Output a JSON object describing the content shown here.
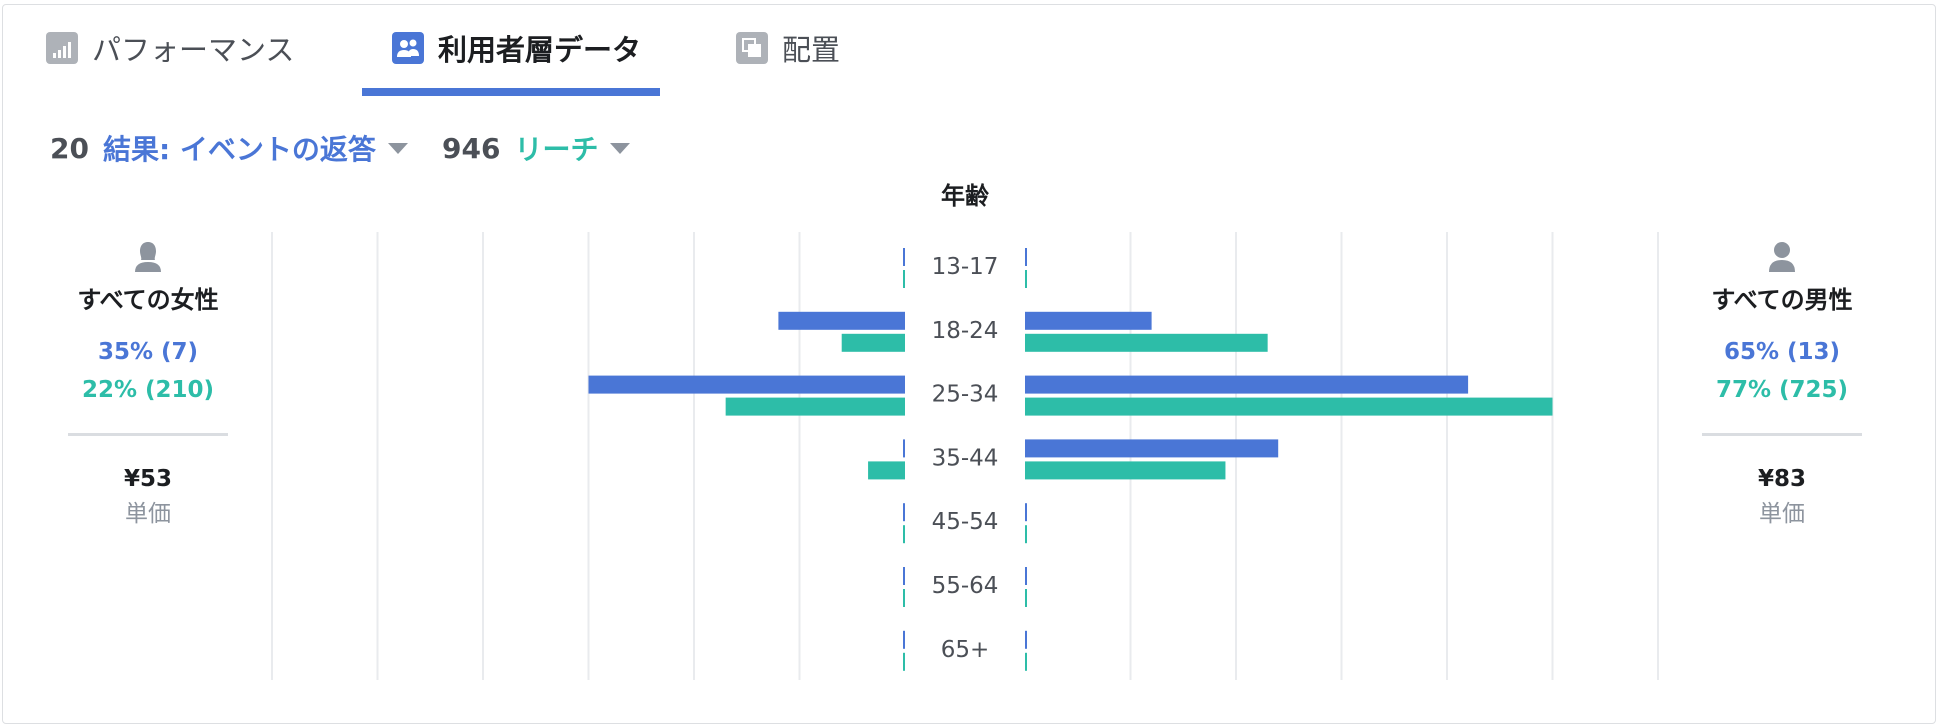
{
  "tabs": [
    {
      "label": "パフォーマンス",
      "icon": "bar-chart-icon",
      "active": false
    },
    {
      "label": "利用者層データ",
      "icon": "people-icon",
      "active": true
    },
    {
      "label": "配置",
      "icon": "placement-icon",
      "active": false
    }
  ],
  "metrics": {
    "results": {
      "count": "20",
      "label": "結果: イベントの返答"
    },
    "reach": {
      "count": "946",
      "label": "リーチ"
    }
  },
  "colors": {
    "results": "#4a76d6",
    "reach": "#2dbda8",
    "text": "#4b4f56",
    "grid": "#e9ebee"
  },
  "female": {
    "title": "すべての女性",
    "results_text": "35% (7)",
    "reach_text": "22% (210)",
    "cost": "¥53",
    "cost_label": "単価"
  },
  "male": {
    "title": "すべての男性",
    "results_text": "65% (13)",
    "reach_text": "77% (725)",
    "cost": "¥83",
    "cost_label": "単価"
  },
  "chart_data": {
    "type": "bar",
    "orientation": "horizontal-butterfly",
    "title": "年齢",
    "categories": [
      "13-17",
      "18-24",
      "25-34",
      "35-44",
      "45-54",
      "55-64",
      "65+"
    ],
    "series": [
      {
        "name": "結果: イベントの返答 (女性)",
        "side": "left",
        "color": "#4a76d6",
        "values": [
          0,
          1.2,
          3.0,
          0,
          0,
          0,
          0
        ]
      },
      {
        "name": "リーチ (女性)",
        "side": "left",
        "color": "#2dbda8",
        "values": [
          0,
          0.6,
          1.7,
          0.35,
          0,
          0,
          0
        ]
      },
      {
        "name": "結果: イベントの返答 (男性)",
        "side": "right",
        "color": "#4a76d6",
        "values": [
          0,
          1.2,
          4.2,
          2.4,
          0,
          0,
          0
        ]
      },
      {
        "name": "リーチ (男性)",
        "side": "right",
        "color": "#2dbda8",
        "values": [
          0,
          2.3,
          5.0,
          1.9,
          0,
          0,
          0
        ]
      }
    ],
    "xlim": [
      0,
      6
    ],
    "grid": true
  }
}
